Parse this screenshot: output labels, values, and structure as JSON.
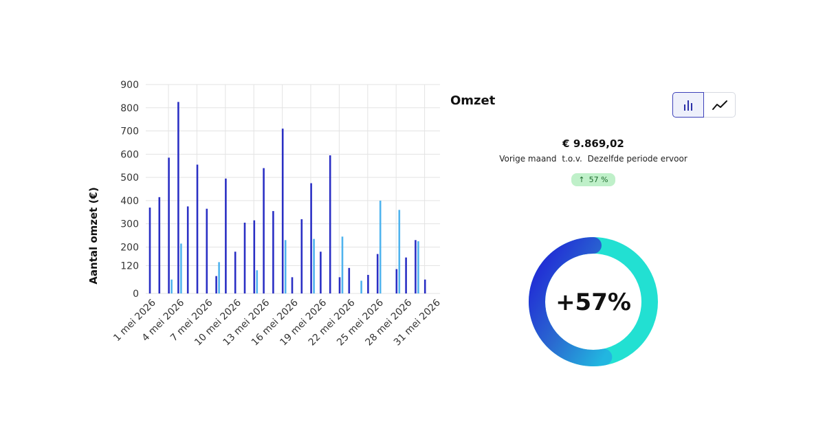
{
  "chart_data": {
    "type": "bar",
    "ylabel": "Aantal omzet (€)",
    "yticks": [
      0,
      120,
      200,
      300,
      400,
      500,
      600,
      700,
      800,
      900
    ],
    "ylim": [
      0,
      900
    ],
    "xticks": [
      "1 mei 2026",
      "4 mei 2026",
      "7 mei 2026",
      "10 mei 2026",
      "13 mei 2026",
      "16 mei 2026",
      "19 mei 2026",
      "22 mei 2026",
      "25 mei 2026",
      "28 mei 2026",
      "31 mei 2026"
    ],
    "grid": true,
    "days": [
      1,
      2,
      3,
      4,
      5,
      6,
      7,
      8,
      9,
      10,
      11,
      12,
      13,
      14,
      15,
      16,
      17,
      18,
      19,
      20,
      21,
      22,
      23,
      24,
      25,
      26,
      27,
      28,
      29,
      30,
      31
    ],
    "series": [
      {
        "values": [
          370,
          415,
          585,
          825,
          375,
          555,
          365,
          75,
          495,
          180,
          305,
          315,
          540,
          355,
          710,
          70,
          320,
          475,
          180,
          595,
          70,
          110,
          0,
          80,
          170,
          0,
          105,
          155,
          230,
          60,
          0
        ],
        "color": "#2a2fc4"
      },
      {
        "values": [
          0,
          0,
          60,
          215,
          0,
          0,
          0,
          135,
          0,
          0,
          0,
          100,
          0,
          0,
          230,
          0,
          0,
          235,
          0,
          0,
          245,
          0,
          55,
          0,
          400,
          0,
          360,
          0,
          225,
          0,
          0
        ],
        "color": "#4fb3ee"
      }
    ]
  },
  "panel": {
    "title": "Omzet",
    "total": "€ 9.869,02",
    "compare_left": "Vorige maand",
    "compare_mid": "t.o.v.",
    "compare_right": "Dezelfde periode ervoor",
    "badge_arrow": "↑",
    "badge_value": "57 %",
    "toggle_bar_icon": "bar-chart-icon",
    "toggle_line_icon": "line-chart-icon"
  },
  "donut": {
    "label": "+57%",
    "percent": 57,
    "color_start": "#1f1fd6",
    "color_end": "#22e0d2"
  }
}
